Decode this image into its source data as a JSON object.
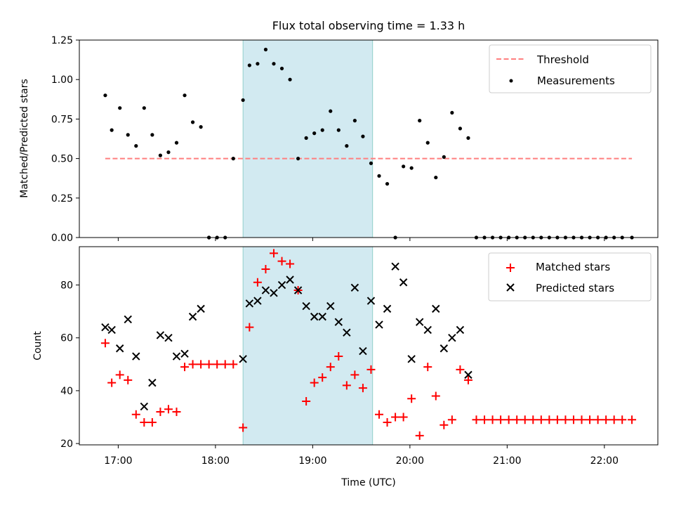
{
  "title": "Flux total observing time = 1.33 h",
  "colors": {
    "threshold": "#ff7f7f",
    "measurement": "#000000",
    "matched": "#ff0000",
    "predicted": "#000000",
    "highlight": "#add8e6"
  },
  "chart_data": [
    {
      "type": "scatter",
      "ylabel": "Matched/Predicted stars",
      "ylim": [
        0,
        1.25
      ],
      "yticks": [
        0,
        0.25,
        0.5,
        0.75,
        1.0,
        1.25
      ],
      "ytick_labels": [
        "0.00",
        "0.25",
        "0.50",
        "0.75",
        "1.00",
        "1.25"
      ],
      "xlim": [
        "16:36",
        "22:33"
      ],
      "highlight_span": [
        "18:17",
        "19:37"
      ],
      "legend_position": "top-right",
      "legend": [
        {
          "label": "Threshold",
          "style": "dashed-line"
        },
        {
          "label": "Measurements",
          "style": "dot"
        }
      ],
      "threshold": {
        "name": "Threshold",
        "y": 0.5,
        "x_range": [
          "16:52",
          "22:17"
        ]
      },
      "series": [
        {
          "name": "Measurements",
          "x": [
            "16:52",
            "16:56",
            "17:01",
            "17:06",
            "17:11",
            "17:16",
            "17:21",
            "17:26",
            "17:31",
            "17:36",
            "17:41",
            "17:46",
            "17:51",
            "17:56",
            "17:56",
            "18:01",
            "18:06",
            "18:11",
            "18:17",
            "18:21",
            "18:26",
            "18:31",
            "18:36",
            "18:41",
            "18:46",
            "18:51",
            "18:56",
            "19:01",
            "19:06",
            "19:11",
            "19:16",
            "19:21",
            "19:26",
            "19:31",
            "19:36",
            "19:41",
            "19:46",
            "19:51",
            "19:56",
            "20:01",
            "20:06",
            "20:11",
            "20:16",
            "20:21",
            "20:26",
            "20:31",
            "20:36",
            "20:41",
            "20:46",
            "20:51",
            "20:56",
            "21:01",
            "21:06",
            "21:11",
            "21:16",
            "21:21",
            "21:26",
            "21:31",
            "21:36",
            "21:41",
            "21:46",
            "21:51",
            "21:56",
            "22:01",
            "22:06",
            "22:11",
            "22:17"
          ],
          "y": [
            0.9,
            0.68,
            0.82,
            0.65,
            0.58,
            0.82,
            0.65,
            0.52,
            0.54,
            0.6,
            0.9,
            0.73,
            0.7,
            0,
            0,
            0,
            0,
            0.5,
            0.87,
            1.09,
            1.1,
            1.19,
            1.1,
            1.07,
            1.0,
            0.5,
            0.63,
            0.66,
            0.68,
            0.8,
            0.68,
            0.58,
            0.74,
            0.64,
            0.47,
            0.39,
            0.34,
            0,
            0.45,
            0.44,
            0.74,
            0.6,
            0.38,
            0.51,
            0.79,
            0.69,
            0.63,
            0,
            0,
            0,
            0,
            0,
            0,
            0,
            0,
            0,
            0,
            0,
            0,
            0,
            0,
            0,
            0,
            0,
            0,
            0,
            0
          ]
        }
      ]
    },
    {
      "type": "scatter",
      "xlabel": "Time (UTC)",
      "ylabel": "Count",
      "ylim": [
        19.5,
        94.5
      ],
      "yticks": [
        20,
        40,
        60,
        80
      ],
      "ytick_labels": [
        "20",
        "40",
        "60",
        "80"
      ],
      "xlim": [
        "16:36",
        "22:33"
      ],
      "xticks": [
        "17:00",
        "18:00",
        "19:00",
        "20:00",
        "21:00",
        "22:00"
      ],
      "highlight_span": [
        "18:17",
        "19:37"
      ],
      "legend_position": "top-right",
      "legend": [
        {
          "label": "Matched stars",
          "style": "plus"
        },
        {
          "label": "Predicted stars",
          "style": "x"
        }
      ],
      "series": [
        {
          "name": "Matched stars",
          "x": [
            "16:52",
            "16:56",
            "17:01",
            "17:06",
            "17:11",
            "17:16",
            "17:21",
            "17:26",
            "17:31",
            "17:36",
            "17:41",
            "17:46",
            "17:51",
            "17:56",
            "18:01",
            "18:06",
            "18:11",
            "18:17",
            "18:21",
            "18:26",
            "18:31",
            "18:36",
            "18:41",
            "18:46",
            "18:51",
            "18:56",
            "19:01",
            "19:06",
            "19:11",
            "19:16",
            "19:21",
            "19:26",
            "19:31",
            "19:36",
            "19:41",
            "19:46",
            "19:51",
            "19:56",
            "20:01",
            "20:06",
            "20:11",
            "20:16",
            "20:21",
            "20:26",
            "20:31",
            "20:36",
            "20:41",
            "20:46",
            "20:51",
            "20:56",
            "21:01",
            "21:06",
            "21:11",
            "21:16",
            "21:21",
            "21:26",
            "21:31",
            "21:36",
            "21:41",
            "21:46",
            "21:51",
            "21:56",
            "22:01",
            "22:06",
            "22:11",
            "22:17"
          ],
          "y": [
            58,
            43,
            46,
            44,
            31,
            28,
            28,
            32,
            33,
            32,
            49,
            50,
            50,
            50,
            50,
            50,
            50,
            26,
            64,
            81,
            86,
            92,
            89,
            88,
            78,
            36,
            43,
            45,
            49,
            53,
            42,
            46,
            41,
            48,
            31,
            28,
            30,
            30,
            37,
            23,
            49,
            38,
            27,
            29,
            48,
            44,
            29,
            29,
            29,
            29,
            29,
            29,
            29,
            29,
            29,
            29,
            29,
            29,
            29,
            29,
            29,
            29,
            29,
            29,
            29,
            29
          ]
        },
        {
          "name": "Predicted stars",
          "x": [
            "16:52",
            "16:56",
            "17:01",
            "17:06",
            "17:11",
            "17:16",
            "17:21",
            "17:26",
            "17:31",
            "17:36",
            "17:41",
            "17:46",
            "17:51",
            "18:17",
            "18:21",
            "18:26",
            "18:31",
            "18:36",
            "18:41",
            "18:46",
            "18:51",
            "18:56",
            "19:01",
            "19:06",
            "19:11",
            "19:16",
            "19:21",
            "19:26",
            "19:31",
            "19:36",
            "19:41",
            "19:46",
            "19:51",
            "19:56",
            "20:01",
            "20:06",
            "20:11",
            "20:16",
            "20:21",
            "20:26",
            "20:31",
            "20:36"
          ],
          "y": [
            64,
            63,
            56,
            67,
            53,
            34,
            43,
            61,
            60,
            53,
            54,
            68,
            71,
            52,
            73,
            74,
            78,
            77,
            80,
            82,
            78,
            72,
            68,
            68,
            72,
            66,
            62,
            79,
            55,
            74,
            65,
            71,
            87,
            81,
            52,
            66,
            63,
            71,
            56,
            60,
            63,
            46
          ]
        }
      ]
    }
  ]
}
